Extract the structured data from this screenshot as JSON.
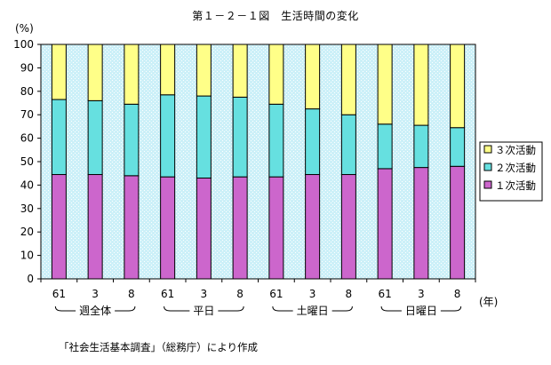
{
  "chart_data": {
    "type": "bar",
    "stacked": true,
    "percent": true,
    "title": "第１－２－１図　生活時間の変化",
    "ylabel": "(%)",
    "ylim": [
      0,
      100
    ],
    "yticks": [
      0,
      10,
      20,
      30,
      40,
      50,
      60,
      70,
      80,
      90,
      100
    ],
    "grid": false,
    "legend_position": "right",
    "categories": [
      "61",
      "3",
      "8",
      "61",
      "3",
      "8",
      "61",
      "3",
      "8",
      "61",
      "3",
      "8"
    ],
    "groups": [
      {
        "label": "週全体",
        "categories": [
          "61",
          "3",
          "8"
        ]
      },
      {
        "label": "平日",
        "categories": [
          "61",
          "3",
          "8"
        ]
      },
      {
        "label": "土曜日",
        "categories": [
          "61",
          "3",
          "8"
        ]
      },
      {
        "label": "日曜日",
        "categories": [
          "61",
          "3",
          "8"
        ]
      }
    ],
    "x_unit": "(年)",
    "series": [
      {
        "name": "１次活動",
        "color": "#cc66cc",
        "values": [
          44.5,
          44.5,
          44.0,
          43.5,
          43.0,
          43.5,
          43.5,
          44.5,
          44.5,
          47.0,
          47.5,
          48.0
        ]
      },
      {
        "name": "２次活動",
        "color": "#66e0e0",
        "values": [
          32.0,
          31.5,
          30.5,
          35.0,
          35.0,
          34.0,
          31.0,
          28.0,
          25.5,
          19.0,
          18.0,
          16.5
        ]
      },
      {
        "name": "３次活動",
        "color": "#ffff88",
        "values": [
          23.5,
          24.0,
          25.5,
          21.5,
          22.0,
          22.5,
          25.5,
          27.5,
          30.0,
          34.0,
          34.5,
          35.5
        ]
      }
    ],
    "legend_order": [
      "３次活動",
      "２次活動",
      "１次活動"
    ],
    "background_color": "#ccf0f8"
  },
  "source_note": "「社会生活基本調査」（総務庁）により作成"
}
